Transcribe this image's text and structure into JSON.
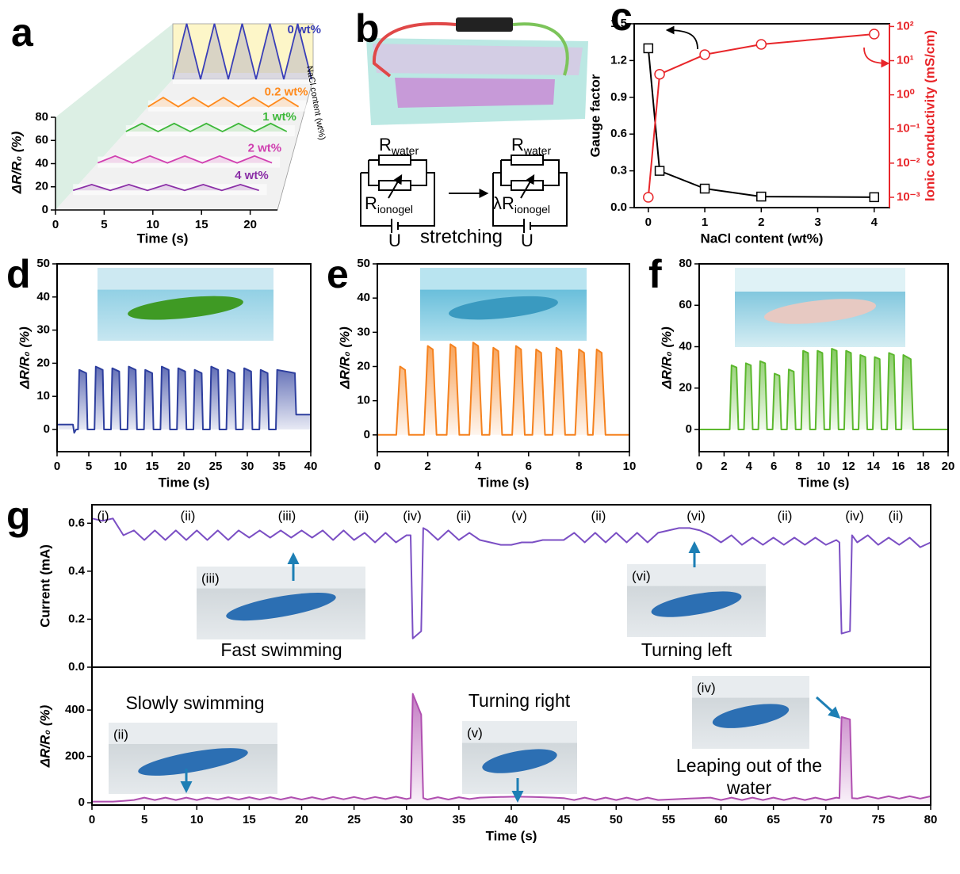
{
  "chart_data": [
    {
      "panel_label": "a",
      "type": "waterfall",
      "xlabel": "Time (s)",
      "ylabel": "ΔR/R₀ (%)",
      "zlabel": "NaCl content (wt%)",
      "xlim": [
        0,
        22.8
      ],
      "xticks": [
        0,
        5,
        10,
        15,
        20
      ],
      "ylim": [
        0,
        80
      ],
      "yticks": [
        0,
        20,
        40,
        60,
        80
      ],
      "x": [
        0,
        2,
        4,
        6,
        8,
        10,
        12,
        14,
        16,
        18,
        20
      ],
      "series": [
        {
          "name": "0 wt%",
          "color": "#3a3fb8",
          "values": [
            0,
            48,
            0,
            48,
            0,
            48,
            0,
            48,
            0,
            48,
            0
          ]
        },
        {
          "name": "0.2 wt%",
          "color": "#ff8a1c",
          "values": [
            0,
            8,
            0,
            8,
            0,
            8,
            0,
            8,
            0,
            8,
            0
          ]
        },
        {
          "name": "1 wt%",
          "color": "#3db83a",
          "values": [
            0,
            7,
            0,
            7,
            0,
            7,
            0,
            7,
            0,
            7,
            0
          ]
        },
        {
          "name": "2 wt%",
          "color": "#d040b0",
          "values": [
            0,
            6,
            0,
            6,
            0,
            6,
            0,
            6,
            0,
            6,
            0
          ]
        },
        {
          "name": "4 wt%",
          "color": "#8a2ea6",
          "values": [
            0,
            5,
            0,
            5,
            0,
            5,
            0,
            5,
            0,
            5,
            0
          ]
        }
      ]
    },
    {
      "panel_label": "c",
      "type": "line",
      "xlabel": "NaCl content (wt%)",
      "ylabel": "Gauge factor",
      "y2label": "Ionic conductivity (mS/cm)",
      "x": [
        0,
        0.2,
        1,
        2,
        4
      ],
      "xlim": [
        -0.25,
        4.27
      ],
      "xticks": [
        0,
        1,
        2,
        3,
        4
      ],
      "ylim": [
        0,
        1.5
      ],
      "yticks": [
        {
          "value": 0,
          "label": "0.0"
        },
        0.3,
        0.6,
        0.9,
        1.2,
        1.5
      ],
      "y2lim": [
        0.0005,
        120
      ],
      "y2scale": "log",
      "y2ticks": [
        {
          "value": 0.001,
          "label": "10⁻³"
        },
        {
          "value": 0.01,
          "label": "10⁻²"
        },
        {
          "value": 0.1,
          "label": "10⁻¹"
        },
        {
          "value": 1,
          "label": "10⁰"
        },
        {
          "value": 10,
          "label": "10¹"
        },
        {
          "value": 100,
          "label": "10²"
        }
      ],
      "series": [
        {
          "color": "#000000",
          "marker": "square",
          "values": [
            1.3,
            0.3,
            0.155,
            0.09,
            0.085
          ]
        },
        {
          "color": "#e8262a",
          "marker": "circle",
          "axis": "y2",
          "values": [
            0.001,
            4,
            15,
            30,
            60
          ]
        }
      ]
    },
    {
      "panel_label": "d",
      "type": "line",
      "fill": true,
      "xlabel": "Time (s)",
      "ylabel": "ΔR/R₀ (%)",
      "xlim": [
        0,
        40
      ],
      "xticks": [
        0,
        5,
        10,
        15,
        20,
        25,
        30,
        35,
        40
      ],
      "ylim": [
        -6.7,
        50
      ],
      "yticks": [
        0,
        10,
        20,
        30,
        40,
        50
      ],
      "x": [
        0,
        2.5,
        2.7,
        3,
        3.3,
        3.5,
        4.6,
        4.8,
        5.9,
        6.1,
        7.2,
        7.4,
        8.5,
        8.7,
        9.8,
        10,
        11.1,
        11.3,
        12.4,
        12.6,
        13.7,
        13.9,
        15,
        15.2,
        16.3,
        16.5,
        17.6,
        17.8,
        18.9,
        19.1,
        20.2,
        20.4,
        21.5,
        21.7,
        22.8,
        23,
        24.1,
        24.3,
        25.4,
        25.6,
        26.7,
        26.9,
        28,
        28.2,
        29.3,
        29.5,
        30.6,
        30.8,
        31.9,
        32.1,
        33.2,
        33.4,
        34.5,
        34.7,
        37.5,
        37.7,
        40
      ],
      "series": [
        {
          "color": "#2e3f9e",
          "values": [
            1.5,
            1.5,
            -1,
            0,
            0,
            18,
            17,
            0,
            0,
            19,
            18,
            0,
            0,
            18.5,
            17.5,
            0,
            0,
            19,
            18,
            0,
            0,
            18,
            17,
            0,
            0,
            19,
            18,
            0,
            0,
            18.5,
            17.5,
            0,
            0,
            18,
            17,
            0,
            0,
            19,
            18,
            0,
            0,
            18,
            17,
            0,
            0,
            18.5,
            17.5,
            0,
            0,
            18,
            17,
            0,
            0,
            18,
            17,
            4.5,
            4.5
          ]
        }
      ]
    },
    {
      "panel_label": "e",
      "type": "line",
      "fill": true,
      "xlabel": "Time (s)",
      "ylabel": "ΔR/R₀ (%)",
      "xlim": [
        0,
        10
      ],
      "xticks": [
        0,
        2,
        4,
        6,
        8,
        10
      ],
      "ylim": [
        -4.9,
        50
      ],
      "yticks": [
        0,
        10,
        20,
        30,
        40,
        50
      ],
      "x": [
        0,
        0.75,
        0.9,
        1.1,
        1.25,
        1.85,
        2,
        2.2,
        2.35,
        2.75,
        2.9,
        3.1,
        3.25,
        3.65,
        3.8,
        4,
        4.15,
        4.45,
        4.6,
        4.8,
        4.95,
        5.35,
        5.5,
        5.7,
        5.85,
        6.15,
        6.3,
        6.5,
        6.65,
        6.95,
        7.1,
        7.3,
        7.45,
        7.85,
        8,
        8.2,
        8.35,
        8.55,
        8.7,
        8.9,
        9.05,
        10
      ],
      "series": [
        {
          "color": "#f5821f",
          "values": [
            0,
            0,
            20,
            19,
            0,
            0,
            26,
            25,
            0,
            0,
            26.5,
            25.5,
            0,
            0,
            27,
            26,
            0,
            0,
            25.5,
            24.5,
            0,
            0,
            26,
            25,
            0,
            0,
            25,
            24,
            0,
            0,
            25.5,
            24.5,
            0,
            0,
            25,
            24,
            0,
            0,
            25,
            24,
            0,
            0
          ]
        }
      ]
    },
    {
      "panel_label": "f",
      "type": "line",
      "fill": true,
      "xlabel": "Time (s)",
      "ylabel": "ΔR/R₀ (%)",
      "xlim": [
        0,
        20
      ],
      "xticks": [
        0,
        2,
        4,
        6,
        8,
        10,
        12,
        14,
        16,
        18,
        20
      ],
      "ylim": [
        -10.7,
        80
      ],
      "yticks": [
        0,
        20,
        40,
        60,
        80
      ],
      "x": [
        0,
        2.45,
        2.6,
        3,
        3.15,
        3.6,
        3.75,
        4.15,
        4.3,
        4.75,
        4.9,
        5.3,
        5.45,
        5.9,
        6.05,
        6.45,
        6.6,
        7.05,
        7.2,
        7.6,
        7.75,
        8.2,
        8.35,
        8.75,
        8.9,
        9.35,
        9.5,
        9.9,
        10.05,
        10.5,
        10.65,
        11.05,
        11.2,
        11.65,
        11.8,
        12.2,
        12.35,
        12.8,
        12.95,
        13.35,
        13.5,
        13.95,
        14.1,
        14.5,
        14.65,
        15.1,
        15.25,
        15.65,
        15.8,
        16.25,
        16.4,
        17,
        17.2,
        20
      ],
      "series": [
        {
          "color": "#5cb82e",
          "values": [
            0,
            0,
            31,
            30,
            0,
            0,
            32,
            31,
            0,
            0,
            33,
            32,
            0,
            0,
            27,
            26,
            0,
            0,
            29,
            28,
            0,
            0,
            38,
            37,
            0,
            0,
            38,
            37,
            0,
            0,
            39,
            38,
            0,
            0,
            38,
            37,
            0,
            0,
            36,
            35,
            0,
            0,
            35,
            34,
            0,
            0,
            37,
            36,
            0,
            0,
            36,
            34,
            0,
            0
          ]
        }
      ]
    },
    {
      "panel_label": "g",
      "type": "stacked-line",
      "xlabel": "Time (s)",
      "xlim": [
        0,
        80
      ],
      "xticks": [
        0,
        5,
        10,
        15,
        20,
        25,
        30,
        35,
        40,
        45,
        50,
        55,
        60,
        65,
        70,
        75,
        80
      ],
      "x": [
        0,
        1,
        2,
        3,
        4,
        5,
        6,
        7,
        8,
        9,
        10,
        11,
        12,
        13,
        14,
        15,
        16,
        17,
        18,
        19,
        20,
        21,
        22,
        23,
        24,
        25,
        26,
        27,
        28,
        29,
        30,
        30.4,
        30.6,
        31.4,
        31.6,
        32,
        33,
        34,
        35,
        36,
        37,
        38,
        39,
        40,
        41,
        42,
        43,
        44,
        45,
        46,
        47,
        48,
        49,
        50,
        51,
        52,
        53,
        54,
        55,
        56,
        57,
        58,
        59,
        60,
        61,
        62,
        63,
        64,
        65,
        66,
        67,
        68,
        69,
        70,
        71,
        71.3,
        71.5,
        72.3,
        72.5,
        73,
        74,
        75,
        76,
        77,
        78,
        79,
        80
      ],
      "panels": [
        {
          "ylabel": "Current (mA)",
          "ylim": [
            0,
            0.677
          ],
          "yticks": [
            {
              "value": 0,
              "label": "0.0"
            },
            0.2,
            0.4,
            0.6
          ],
          "series": [
            {
              "color": "#7b4fc4",
              "values": [
                0.62,
                0.61,
                0.62,
                0.55,
                0.57,
                0.53,
                0.57,
                0.53,
                0.57,
                0.53,
                0.57,
                0.53,
                0.57,
                0.53,
                0.57,
                0.54,
                0.57,
                0.54,
                0.57,
                0.54,
                0.57,
                0.54,
                0.57,
                0.53,
                0.57,
                0.53,
                0.56,
                0.52,
                0.56,
                0.52,
                0.55,
                0.55,
                0.12,
                0.15,
                0.58,
                0.57,
                0.53,
                0.57,
                0.53,
                0.56,
                0.53,
                0.52,
                0.51,
                0.51,
                0.52,
                0.52,
                0.53,
                0.53,
                0.53,
                0.56,
                0.52,
                0.56,
                0.52,
                0.56,
                0.52,
                0.56,
                0.52,
                0.56,
                0.57,
                0.58,
                0.58,
                0.57,
                0.55,
                0.52,
                0.55,
                0.51,
                0.54,
                0.51,
                0.54,
                0.51,
                0.54,
                0.51,
                0.54,
                0.51,
                0.53,
                0.52,
                0.14,
                0.15,
                0.55,
                0.52,
                0.55,
                0.51,
                0.54,
                0.51,
                0.54,
                0.5,
                0.52
              ]
            }
          ],
          "annotations": [
            "(i)",
            "(ii)",
            "(iii)",
            "(ii)",
            "(iv)",
            "(ii)",
            "(v)",
            "(ii)",
            "(vi)",
            "(ii)",
            "(iv)",
            "(ii)"
          ],
          "insets": [
            {
              "label": "(iii)",
              "caption": "Fast swimming"
            },
            {
              "label": "(vi)",
              "caption": "Turning left"
            }
          ]
        },
        {
          "ylabel": "ΔR/R₀ (%)",
          "ylim": [
            -10,
            585
          ],
          "yticks": [
            0,
            200,
            400
          ],
          "series": [
            {
              "color": "#b04fb0",
              "values": [
                5,
                5,
                5,
                8,
                12,
                22,
                12,
                22,
                12,
                22,
                12,
                22,
                14,
                24,
                14,
                24,
                14,
                24,
                14,
                24,
                14,
                24,
                14,
                25,
                15,
                25,
                15,
                25,
                16,
                26,
                16,
                20,
                470,
                380,
                20,
                14,
                24,
                14,
                24,
                16,
                22,
                24,
                25,
                26,
                26,
                25,
                24,
                22,
                20,
                12,
                22,
                12,
                22,
                12,
                22,
                12,
                22,
                12,
                14,
                16,
                18,
                20,
                22,
                12,
                22,
                12,
                22,
                12,
                22,
                12,
                22,
                12,
                22,
                12,
                22,
                20,
                370,
                360,
                20,
                18,
                28,
                18,
                28,
                18,
                28,
                18,
                28
              ]
            }
          ],
          "insets": [
            {
              "label": "(ii)",
              "caption": "Slowly swimming"
            },
            {
              "label": "(v)",
              "caption": "Turning right"
            },
            {
              "label": "(iv)",
              "caption": "Leaping out of the water"
            }
          ]
        }
      ]
    }
  ],
  "diagram": {
    "panel_label": "b",
    "before": {
      "r_water": {
        "main": "R",
        "sub": "water"
      },
      "r_ionogel": {
        "main": "R",
        "sub": "ionogel"
      },
      "source": "U"
    },
    "after": {
      "r_water": {
        "main": "R",
        "sub": "water"
      },
      "r_ionogel": {
        "main": "λR",
        "sub": "ionogel"
      },
      "source": "U"
    },
    "process": "stretching"
  }
}
